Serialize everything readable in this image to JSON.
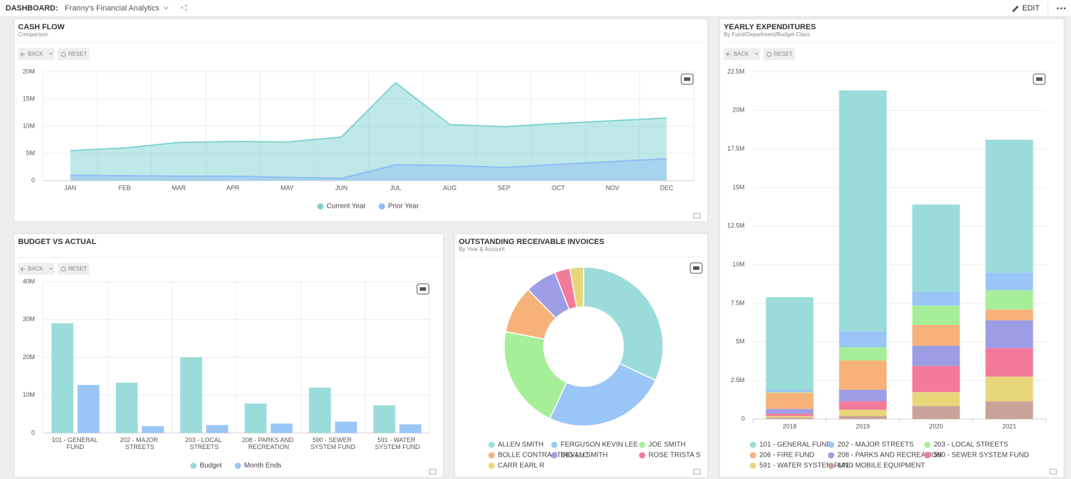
{
  "header": {
    "label": "DASHBOARD:",
    "title": "Franny's Financial Analytics",
    "edit": "EDIT"
  },
  "toolbar": {
    "back": "BACK",
    "reset": "RESET"
  },
  "chart_data": [
    {
      "type": "area",
      "title": "CASH FLOW",
      "subtitle": "Comparison",
      "categories": [
        "JAN",
        "FEB",
        "MAR",
        "APR",
        "MAY",
        "JUN",
        "JUL",
        "AUG",
        "SEP",
        "OCT",
        "NOV",
        "DEC"
      ],
      "series": [
        {
          "name": "Current Year",
          "color": "#7fd3d1",
          "values": [
            5500000,
            6000000,
            7000000,
            7200000,
            7100000,
            8000000,
            18000000,
            10300000,
            9900000,
            10500000,
            11000000,
            11500000
          ]
        },
        {
          "name": "Prior Year",
          "color": "#8fbdf3",
          "values": [
            1000000,
            900000,
            800000,
            800000,
            600000,
            400000,
            2900000,
            2800000,
            2400000,
            3000000,
            3500000,
            4000000
          ]
        }
      ],
      "ylim": [
        0,
        20000000
      ],
      "yticks": [
        0,
        {
          "value": 5000000,
          "label": "5M"
        },
        {
          "value": 10000000,
          "label": "10M"
        },
        {
          "value": 15000000,
          "label": "15M"
        },
        {
          "value": 20000000,
          "label": "20M"
        }
      ],
      "grid": true,
      "legend": "bottom"
    },
    {
      "type": "bar",
      "title": "BUDGET VS ACTUAL",
      "categories": [
        "101 - GENERAL FUND",
        "202 - MAJOR STREETS",
        "203 - LOCAL STREETS",
        "208 - PARKS AND RECREATION",
        "590 - SEWER SYSTEM FUND",
        "591 - WATER SYSTEM FUND"
      ],
      "series": [
        {
          "name": "Budget",
          "color": "#9adcda",
          "values": [
            29000000,
            13300000,
            20000000,
            7800000,
            12000000,
            7300000
          ]
        },
        {
          "name": "Month Ends",
          "color": "#99c6f7",
          "values": [
            12700000,
            1800000,
            2100000,
            2500000,
            3000000,
            2300000
          ]
        }
      ],
      "ylim": [
        0,
        40000000
      ],
      "yticks": [
        0,
        {
          "value": 10000000,
          "label": "10M"
        },
        {
          "value": 20000000,
          "label": "20M"
        },
        {
          "value": 30000000,
          "label": "30M"
        },
        {
          "value": 40000000,
          "label": "40M"
        }
      ],
      "grid": true,
      "legend": "bottom"
    },
    {
      "type": "donut",
      "title": "OUTSTANDING RECEIVABLE INVOICES",
      "subtitle": "By Year & Account",
      "categories": [
        "ALLEN SMITH",
        "FERGUSON KEVIN LEE",
        "JOE SMITH",
        "BOLLE CONTRACTING LLC",
        "DEVAN SMITH",
        "ROSE TRISTA S",
        "CARR EARL R"
      ],
      "values": [
        32,
        25,
        21,
        9.7,
        6.4,
        3.1,
        2.8
      ],
      "colors": [
        "#9adcda",
        "#99c6f7",
        "#a6ee98",
        "#f7b27a",
        "#9d9de6",
        "#f27a9b",
        "#e8d77a"
      ],
      "legend": "bottom"
    },
    {
      "type": "stacked-bar",
      "title": "YEARLY EXPENDITURES",
      "subtitle": "By Fund/Department/Budget Class",
      "categories": [
        "2018",
        "2019",
        "2020",
        "2021"
      ],
      "series": [
        {
          "name": "101 - GENERAL FUND",
          "color": "#9adcda",
          "values": [
            6000000,
            15600000,
            5650000,
            8600000
          ]
        },
        {
          "name": "202 - MAJOR STREETS",
          "color": "#99c6f7",
          "values": [
            150000,
            1050000,
            900000,
            1150000
          ]
        },
        {
          "name": "203 - LOCAL STREETS",
          "color": "#a6ee98",
          "values": [
            50000,
            850000,
            1250000,
            1250000
          ]
        },
        {
          "name": "206 - FIRE FUND",
          "color": "#f7b27a",
          "values": [
            1050000,
            1900000,
            1350000,
            700000
          ]
        },
        {
          "name": "208 - PARKS AND RECREATION",
          "color": "#9d9de6",
          "values": [
            300000,
            750000,
            1300000,
            1800000
          ]
        },
        {
          "name": "590 - SEWER SYSTEM FUND",
          "color": "#f27a9b",
          "values": [
            150000,
            550000,
            1700000,
            1850000
          ]
        },
        {
          "name": "591 - WATER SYSTEM FUND",
          "color": "#e8d77a",
          "values": [
            100000,
            400000,
            900000,
            1600000
          ]
        },
        {
          "name": "641 - MOBILE EQUIPMENT",
          "color": "#c9a39a",
          "values": [
            100000,
            200000,
            850000,
            1150000
          ]
        }
      ],
      "ylim": [
        0,
        22500000
      ],
      "yticks": [
        0,
        {
          "value": 2500000,
          "label": "2.5M"
        },
        {
          "value": 5000000,
          "label": "5M"
        },
        {
          "value": 7500000,
          "label": "7.5M"
        },
        {
          "value": 10000000,
          "label": "10M"
        },
        {
          "value": 12500000,
          "label": "12.5M"
        },
        {
          "value": 15000000,
          "label": "15M"
        },
        {
          "value": 17500000,
          "label": "17.5M"
        },
        {
          "value": 20000000,
          "label": "20M"
        },
        {
          "value": 22500000,
          "label": "22.5M"
        }
      ],
      "grid": true,
      "legend": "bottom"
    }
  ]
}
